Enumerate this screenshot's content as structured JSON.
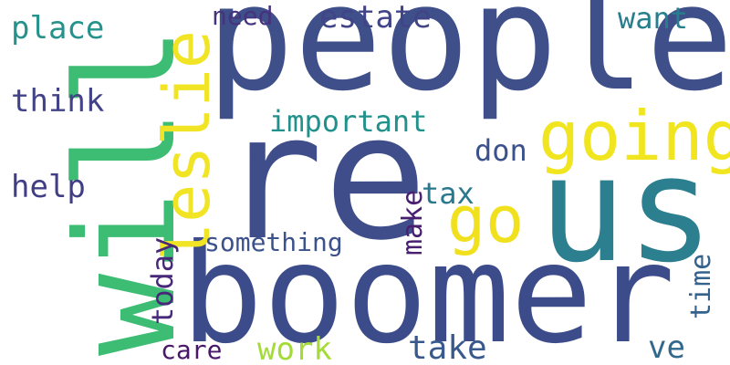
{
  "words": [
    {
      "text": "people",
      "color": "#3e4f8a"
    },
    {
      "text": "re",
      "color": "#3f4d8a"
    },
    {
      "text": "boomer",
      "color": "#3c4c8a"
    },
    {
      "text": "us",
      "color": "#2c7f8e"
    },
    {
      "text": "will",
      "color": "#3dbc74"
    },
    {
      "text": "going",
      "color": "#f0e51f"
    },
    {
      "text": "leslie",
      "color": "#f1e425"
    },
    {
      "text": "go",
      "color": "#f0e01d"
    },
    {
      "text": "estate",
      "color": "#414487"
    },
    {
      "text": "need",
      "color": "#46337e"
    },
    {
      "text": "want",
      "color": "#277f8e"
    },
    {
      "text": "place",
      "color": "#25938c"
    },
    {
      "text": "think",
      "color": "#414287"
    },
    {
      "text": "important",
      "color": "#21918c"
    },
    {
      "text": "don",
      "color": "#3b518b"
    },
    {
      "text": "help",
      "color": "#423e85"
    },
    {
      "text": "tax",
      "color": "#2a788e"
    },
    {
      "text": "make",
      "color": "#481f70"
    },
    {
      "text": "today",
      "color": "#482878"
    },
    {
      "text": "something",
      "color": "#3b528b"
    },
    {
      "text": "time",
      "color": "#33628d"
    },
    {
      "text": "care",
      "color": "#481769"
    },
    {
      "text": "work",
      "color": "#a5db36"
    },
    {
      "text": "take",
      "color": "#38598c"
    },
    {
      "text": "ve",
      "color": "#31688e"
    }
  ]
}
